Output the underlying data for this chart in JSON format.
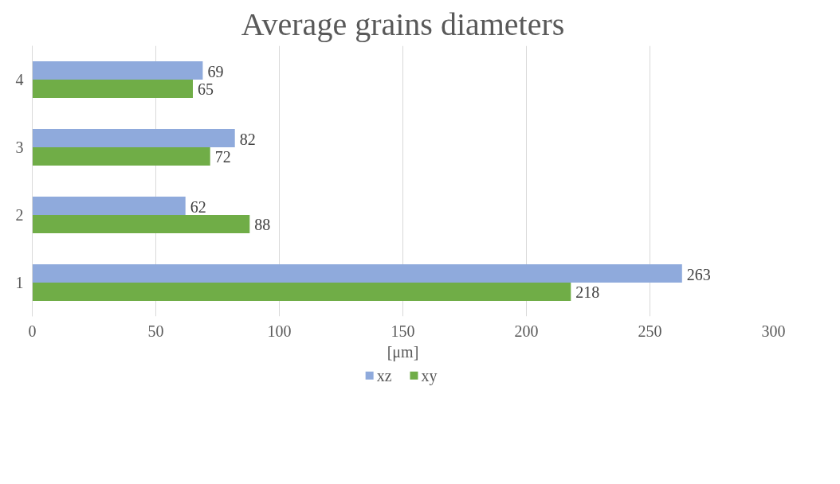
{
  "chart_data": {
    "type": "bar",
    "orientation": "horizontal",
    "title": "Average grains diameters",
    "xlabel": "[μm]",
    "categories": [
      "4",
      "3",
      "2",
      "1"
    ],
    "series": [
      {
        "name": "xz",
        "color": "#8faadc",
        "values": [
          69,
          82,
          62,
          263
        ]
      },
      {
        "name": "xy",
        "color": "#70ad47",
        "values": [
          65,
          72,
          88,
          218
        ]
      }
    ],
    "xlim": [
      0,
      300
    ],
    "xticks": [
      0,
      50,
      100,
      150,
      200,
      250,
      300
    ],
    "grid": "x",
    "legend": "bottom",
    "data_labels": true
  }
}
